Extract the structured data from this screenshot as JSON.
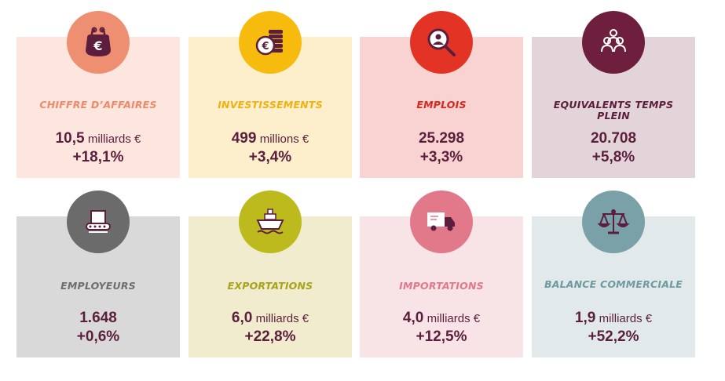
{
  "cards": [
    {
      "label": "CHIFFRE D’AFFAIRES",
      "value": "10,5",
      "unit": "milliards €",
      "change": "+18,1%",
      "icon": "euro-purse-icon",
      "bg": "#fde6de",
      "circle": "#ef8f72",
      "label_color": "#ee8a6a"
    },
    {
      "label": "INVESTISSEMENTS",
      "value": "499",
      "unit": "millions €",
      "change": "+3,4%",
      "icon": "coins-icon",
      "bg": "#fdefcb",
      "circle": "#f7bb0d",
      "label_color": "#f0b010"
    },
    {
      "label": "EMPLOIS",
      "value": "25.298",
      "unit": "",
      "change": "+3,3%",
      "icon": "person-search-icon",
      "bg": "#f8d3d1",
      "circle": "#e33324",
      "label_color": "#d8271d"
    },
    {
      "label": "EQUIVALENTS TEMPS PLEIN",
      "value": "20.708",
      "unit": "",
      "change": "+5,8%",
      "icon": "group-people-icon",
      "bg": "#e3d4d9",
      "circle": "#6e1f3d",
      "label_color": "#5c1e3d"
    },
    {
      "label": "EMPLOYEURS",
      "value": "1.648",
      "unit": "",
      "change": "+0,6%",
      "icon": "conveyor-box-icon",
      "bg": "#d9d9d9",
      "circle": "#6b6b6b",
      "label_color": "#6e6e6e"
    },
    {
      "label": "EXPORTATIONS",
      "value": "6,0",
      "unit": "milliards €",
      "change": "+22,8%",
      "icon": "cargo-ship-icon",
      "bg": "#f0eccd",
      "circle": "#bcba1c",
      "label_color": "#a7a31a"
    },
    {
      "label": "IMPORTATIONS",
      "value": "4,0",
      "unit": "milliards €",
      "change": "+12,5%",
      "icon": "delivery-truck-icon",
      "bg": "#f8e3e7",
      "circle": "#e2798b",
      "label_color": "#e0788a"
    },
    {
      "label": "BALANCE COMMERCIALE",
      "value": "1,9",
      "unit": "milliards €",
      "change": "+52,2%",
      "icon": "scales-icon",
      "bg": "#e1e9ea",
      "circle": "#7aa1a8",
      "label_color": "#6f9aa1"
    }
  ]
}
